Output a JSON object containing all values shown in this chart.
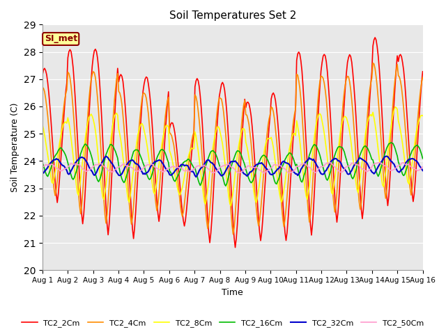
{
  "title": "Soil Temperatures Set 2",
  "xlabel": "Time",
  "ylabel": "Soil Temperature (C)",
  "ylim": [
    20.0,
    29.0
  ],
  "yticks": [
    20.0,
    21.0,
    22.0,
    23.0,
    24.0,
    25.0,
    26.0,
    27.0,
    28.0,
    29.0
  ],
  "xtick_labels": [
    "Aug 1",
    "Aug 2",
    "Aug 3",
    "Aug 4",
    "Aug 5",
    "Aug 6",
    "Aug 7",
    "Aug 8",
    "Aug 9",
    "Aug 10",
    "Aug 11",
    "Aug 12",
    "Aug 13",
    "Aug 14",
    "Aug 15",
    "Aug 16"
  ],
  "series_names": [
    "TC2_2Cm",
    "TC2_4Cm",
    "TC2_8Cm",
    "TC2_16Cm",
    "TC2_32Cm",
    "TC2_50Cm"
  ],
  "series_colors": [
    "#FF0000",
    "#FF8C00",
    "#FFFF00",
    "#00BB00",
    "#0000CC",
    "#FF99CC"
  ],
  "series_lw": [
    1.2,
    1.2,
    1.2,
    1.2,
    1.5,
    1.2
  ],
  "label_text": "SI_met",
  "label_bg": "#FFFF99",
  "label_border": "#8B0000",
  "bg_color": "#E8E8E8",
  "fig_bg": "#FFFFFF",
  "amplitudes": [
    3.2,
    2.6,
    1.5,
    0.65,
    0.3,
    0.15
  ],
  "means": [
    23.7,
    23.7,
    23.6,
    23.8,
    23.7,
    23.3
  ],
  "phase_delays": [
    0.0,
    0.08,
    0.18,
    0.38,
    0.55,
    0.85
  ],
  "peak_maxes": [
    27.4,
    28.1,
    28.1,
    27.2,
    27.1,
    25.4,
    27.0,
    26.9,
    26.2,
    26.5,
    28.0,
    27.9,
    27.9,
    28.5,
    27.9
  ],
  "trough_mins": [
    22.5,
    21.7,
    21.3,
    21.2,
    21.8,
    21.6,
    21.0,
    20.8,
    21.1,
    21.1,
    21.3,
    21.8,
    21.9,
    22.4,
    22.5
  ]
}
